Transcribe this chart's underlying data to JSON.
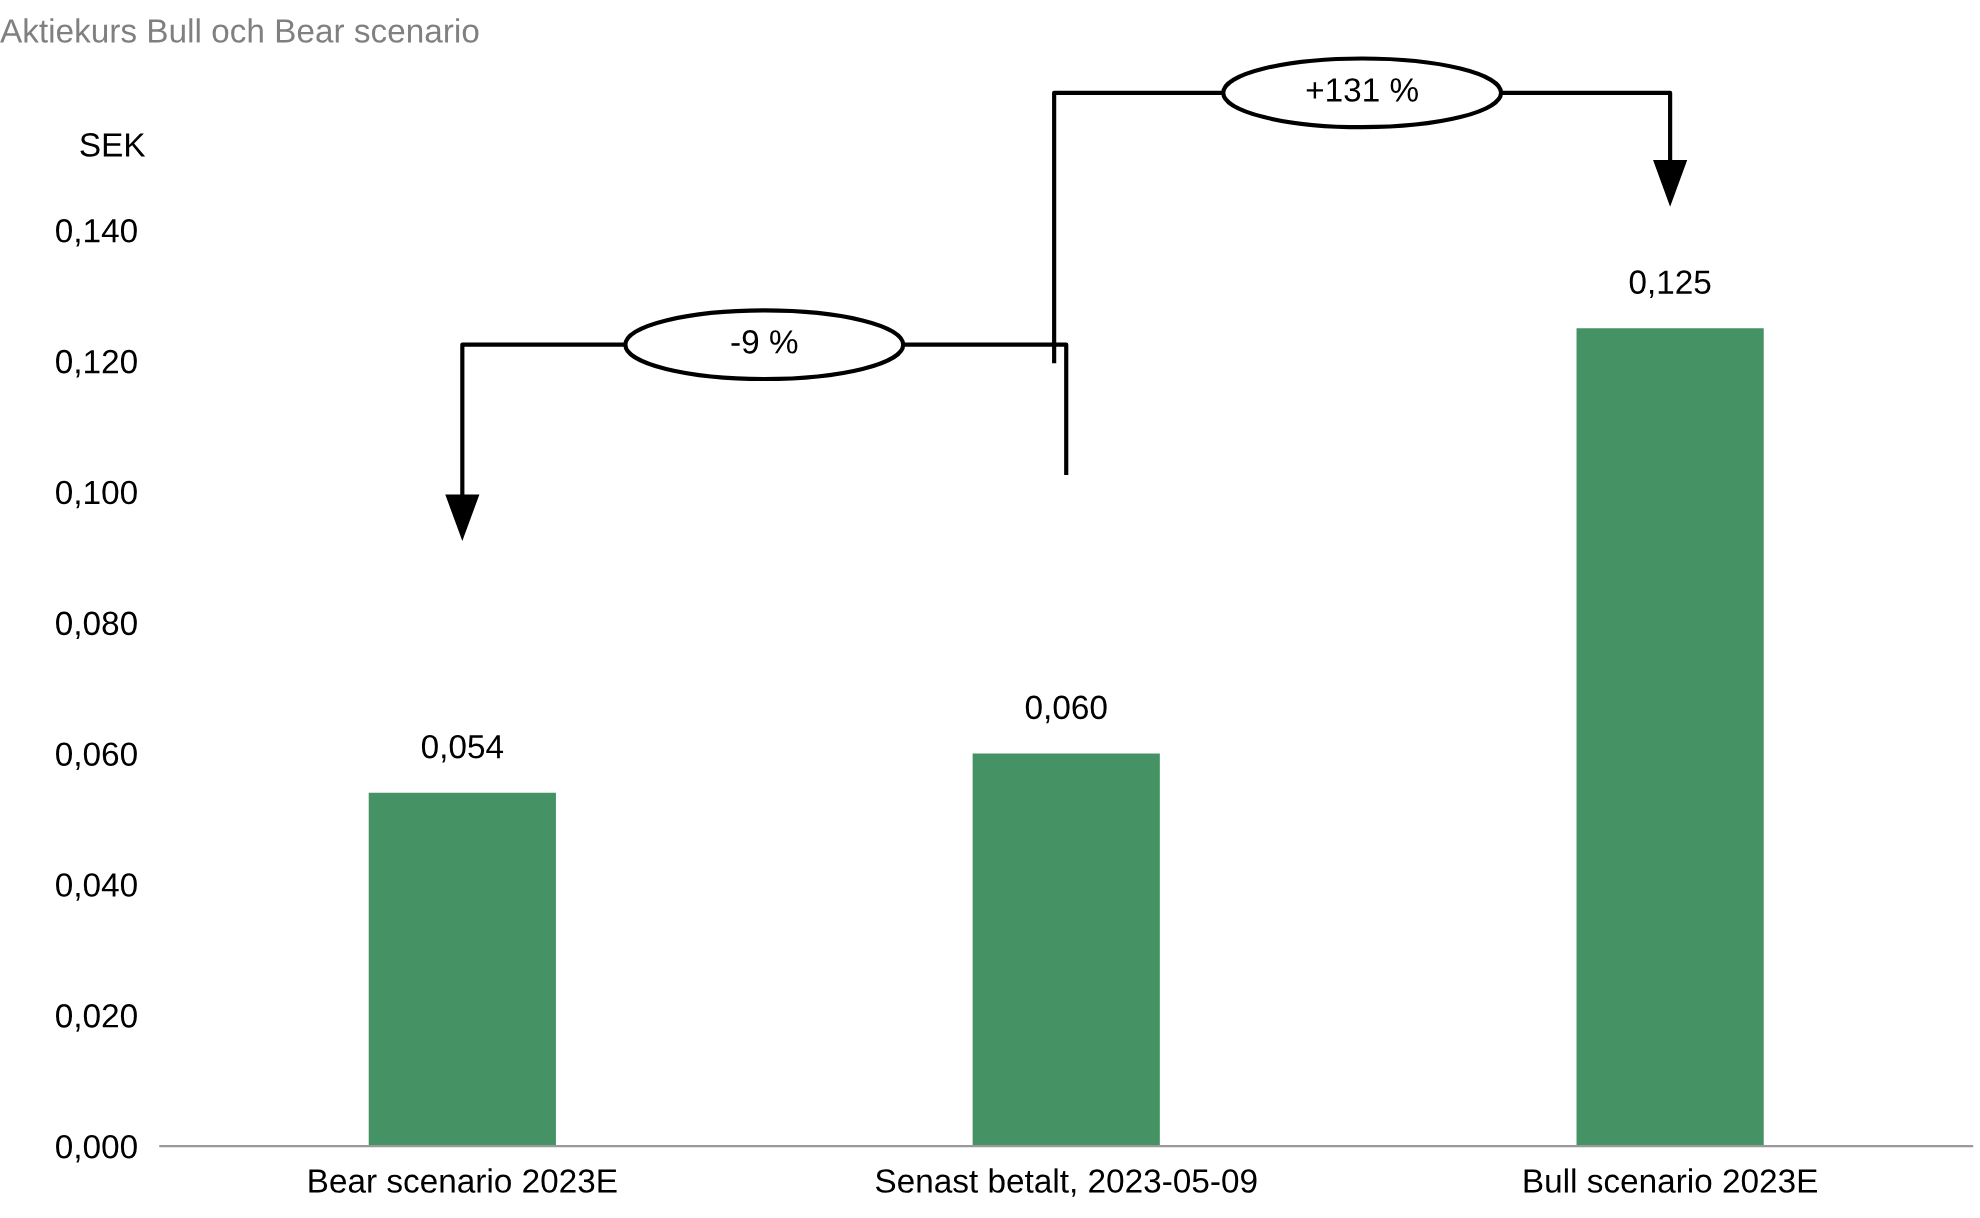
{
  "chart_data": {
    "type": "bar",
    "subtitle": "Aktiekurs Bull och Bear scenario",
    "ylabel": "SEK",
    "categories": [
      "Bear scenario 2023E",
      "Senast betalt, 2023-05-09",
      "Bull scenario 2023E"
    ],
    "values": [
      0.054,
      0.06,
      0.125
    ],
    "value_labels": [
      "0,054",
      "0,060",
      "0,125"
    ],
    "color": "#459264",
    "ylim": [
      0,
      0.14
    ],
    "yticks": [
      {
        "value": 0,
        "label": "0,000"
      },
      {
        "value": 0.02,
        "label": "0,020"
      },
      {
        "value": 0.04,
        "label": "0,040"
      },
      {
        "value": 0.06,
        "label": "0,060"
      },
      {
        "value": 0.08,
        "label": "0,080"
      },
      {
        "value": 0.1,
        "label": "0,100"
      },
      {
        "value": 0.12,
        "label": "0,120"
      },
      {
        "value": 0.14,
        "label": "0,140"
      }
    ],
    "annotations": [
      "-9 %",
      "+131 %"
    ],
    "grid": false,
    "legend": false
  }
}
